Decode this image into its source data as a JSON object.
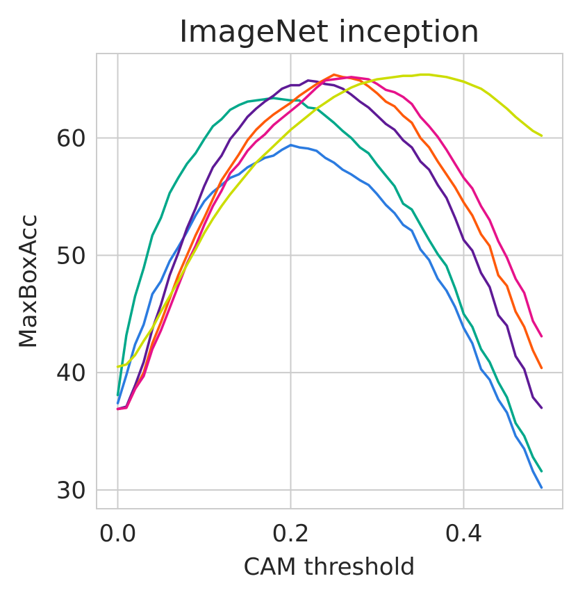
{
  "chart_data": {
    "type": "line",
    "title": "ImageNet inception",
    "xlabel": "CAM threshold",
    "ylabel": "MaxBoxAcc",
    "xlim": [
      -0.0245,
      0.5145
    ],
    "ylim": [
      28.4,
      67.2
    ],
    "xticks": [
      0.0,
      0.2,
      0.4
    ],
    "xtick_labels": [
      "0.0",
      "0.2",
      "0.4"
    ],
    "yticks": [
      30,
      40,
      50,
      60
    ],
    "ytick_labels": [
      "30",
      "40",
      "50",
      "60"
    ],
    "grid": true,
    "legend": "none",
    "x": [
      0.0,
      0.01,
      0.02,
      0.03,
      0.04,
      0.05,
      0.06,
      0.07,
      0.08,
      0.09,
      0.1,
      0.11,
      0.12,
      0.13,
      0.14,
      0.15,
      0.16,
      0.17,
      0.18,
      0.19,
      0.2,
      0.21,
      0.22,
      0.23,
      0.24,
      0.25,
      0.26,
      0.27,
      0.28,
      0.29,
      0.3,
      0.31,
      0.32,
      0.33,
      0.34,
      0.35,
      0.36,
      0.37,
      0.38,
      0.39,
      0.4,
      0.41,
      0.42,
      0.43,
      0.44,
      0.45,
      0.46,
      0.47,
      0.48,
      0.49
    ],
    "series": [
      {
        "color": "#2b7be0",
        "values": [
          37.4,
          39.8,
          42.4,
          44.1,
          46.7,
          47.8,
          49.5,
          50.7,
          52.0,
          53.4,
          54.6,
          55.4,
          56.0,
          56.6,
          56.9,
          57.5,
          57.9,
          58.3,
          58.5,
          59.0,
          59.4,
          59.2,
          59.1,
          58.9,
          58.3,
          57.9,
          57.3,
          56.9,
          56.4,
          56.0,
          55.2,
          54.3,
          53.6,
          52.6,
          52.1,
          50.5,
          49.6,
          48.0,
          47.0,
          45.6,
          43.8,
          42.5,
          40.3,
          39.4,
          37.7,
          36.6,
          34.6,
          33.5,
          31.6,
          30.2
        ]
      },
      {
        "color": "#00a88a",
        "values": [
          38.1,
          43.2,
          46.5,
          48.9,
          51.7,
          53.2,
          55.3,
          56.6,
          57.8,
          58.7,
          59.9,
          61.0,
          61.6,
          62.4,
          62.8,
          63.1,
          63.2,
          63.3,
          63.4,
          63.3,
          63.2,
          63.2,
          62.6,
          62.5,
          61.9,
          61.3,
          60.6,
          60.0,
          59.2,
          58.7,
          57.7,
          56.8,
          55.9,
          54.4,
          53.9,
          52.6,
          51.3,
          50.1,
          49.1,
          47.2,
          45.0,
          43.9,
          42.0,
          40.9,
          39.2,
          37.9,
          35.7,
          34.6,
          32.8,
          31.6
        ]
      },
      {
        "color": "#5e1a96",
        "values": [
          36.9,
          37.1,
          38.9,
          40.9,
          43.7,
          45.8,
          48.3,
          50.2,
          52.3,
          54.0,
          55.9,
          57.5,
          58.5,
          59.9,
          60.8,
          61.8,
          62.5,
          63.1,
          63.6,
          64.2,
          64.5,
          64.5,
          64.9,
          64.8,
          64.6,
          64.5,
          64.2,
          63.7,
          63.1,
          62.6,
          61.9,
          61.2,
          60.7,
          59.8,
          59.2,
          58.0,
          57.3,
          56.0,
          54.9,
          53.2,
          51.3,
          50.4,
          48.5,
          47.3,
          44.9,
          44.0,
          41.4,
          40.3,
          37.9,
          37.0
        ]
      },
      {
        "color": "#ff5a0a",
        "values": [
          36.9,
          37.0,
          38.6,
          40.0,
          42.5,
          44.3,
          46.3,
          48.3,
          50.0,
          51.7,
          53.2,
          54.8,
          56.4,
          57.5,
          58.6,
          59.8,
          60.7,
          61.4,
          62.0,
          62.5,
          63.0,
          63.6,
          64.1,
          64.6,
          65.0,
          65.4,
          65.2,
          65.1,
          64.9,
          64.4,
          63.8,
          63.1,
          62.7,
          61.9,
          61.3,
          60.0,
          59.2,
          58.0,
          56.9,
          55.8,
          54.5,
          53.4,
          51.8,
          50.8,
          48.3,
          47.4,
          45.2,
          43.9,
          41.9,
          40.4
        ]
      },
      {
        "color": "#e6128a",
        "values": [
          36.9,
          37.0,
          38.6,
          39.7,
          42.0,
          43.6,
          45.5,
          47.4,
          49.3,
          50.8,
          52.6,
          54.2,
          55.5,
          57.0,
          57.8,
          58.9,
          59.7,
          60.3,
          61.1,
          61.7,
          62.3,
          62.9,
          63.6,
          64.3,
          64.9,
          65.0,
          65.1,
          65.2,
          65.1,
          65.0,
          64.6,
          64.1,
          63.9,
          63.5,
          62.9,
          61.8,
          61.0,
          60.1,
          59.0,
          57.8,
          56.6,
          55.7,
          54.2,
          53.0,
          51.2,
          49.8,
          48.0,
          46.8,
          44.4,
          43.1
        ]
      },
      {
        "color": "#ccdd00",
        "values": [
          40.5,
          40.7,
          41.5,
          42.7,
          43.8,
          45.2,
          46.5,
          47.8,
          49.2,
          50.5,
          51.9,
          53.1,
          54.2,
          55.2,
          56.1,
          57.0,
          57.9,
          58.6,
          59.3,
          60.0,
          60.7,
          61.3,
          61.9,
          62.5,
          63.0,
          63.5,
          63.9,
          64.3,
          64.6,
          64.8,
          65.0,
          65.1,
          65.2,
          65.3,
          65.3,
          65.4,
          65.4,
          65.3,
          65.2,
          65.0,
          64.8,
          64.5,
          64.2,
          63.7,
          63.1,
          62.5,
          61.8,
          61.2,
          60.6,
          60.2
        ]
      }
    ]
  }
}
